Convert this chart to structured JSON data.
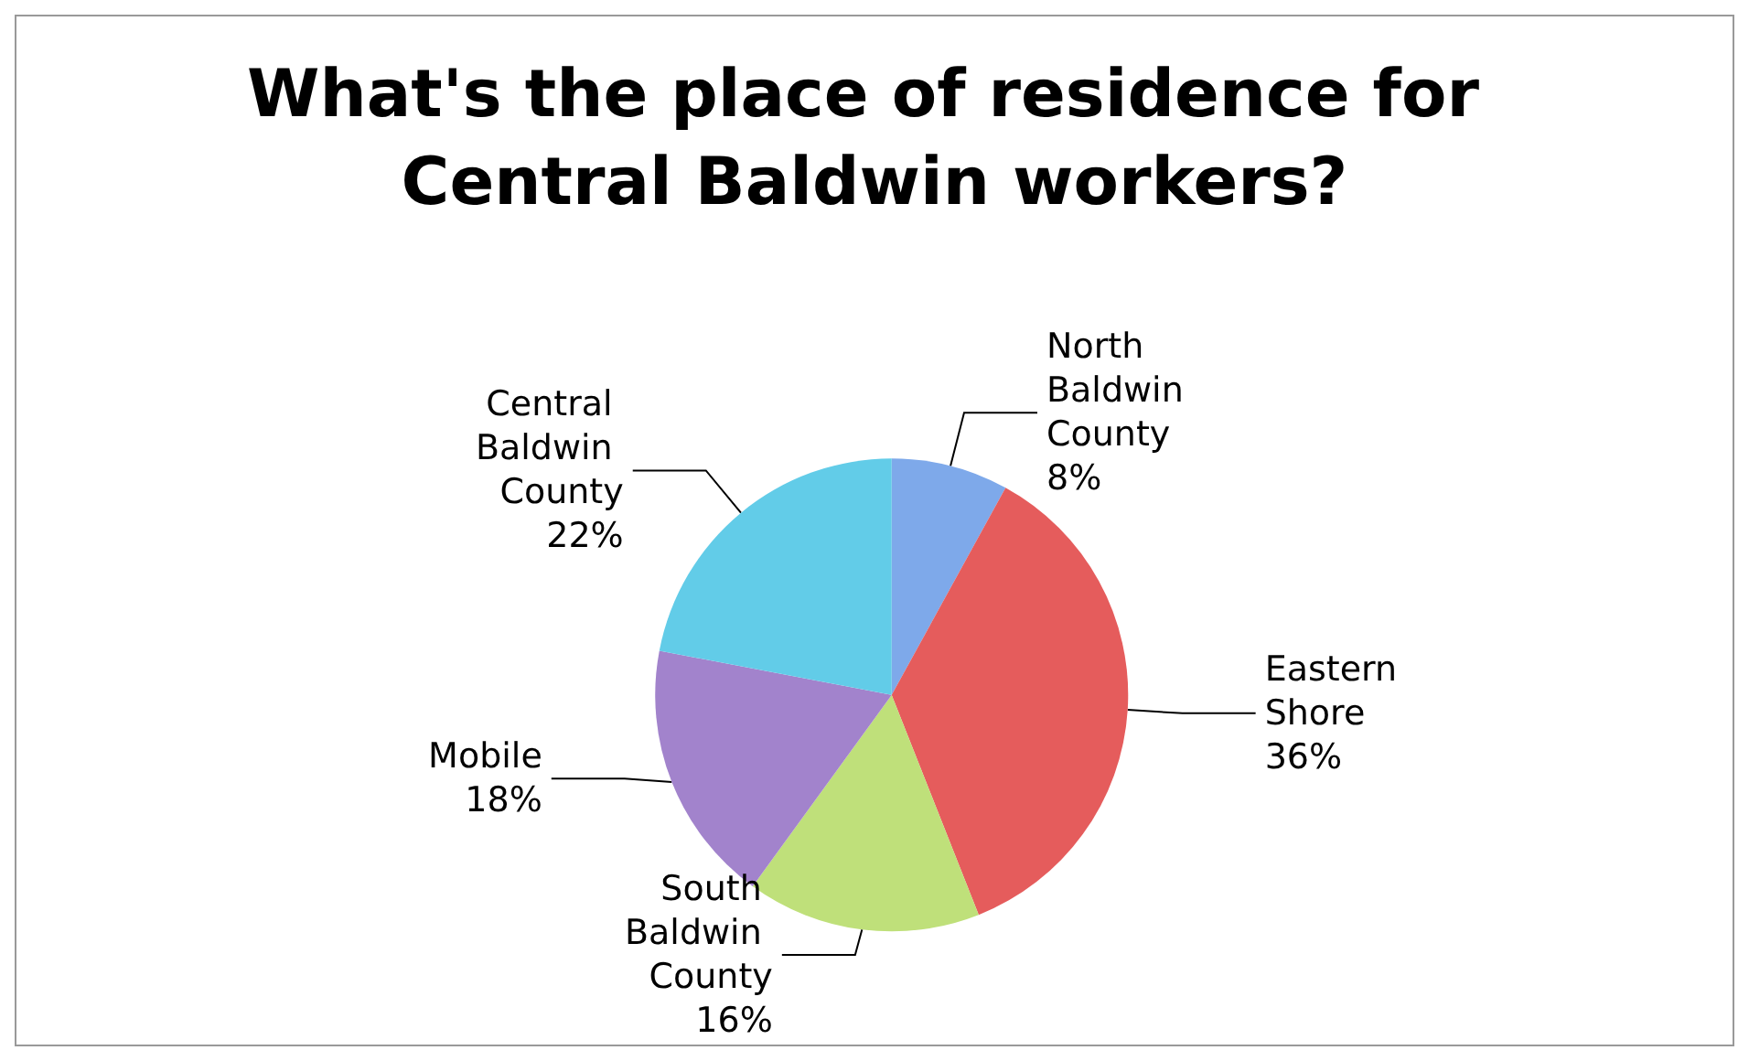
{
  "chart_data": {
    "type": "pie",
    "title": "What's the place of residence for Central Baldwin workers?",
    "categories": [
      "North Baldwin County",
      "Eastern Shore",
      "South Baldwin County",
      "Mobile",
      "Central Baldwin County"
    ],
    "values": [
      8,
      36,
      16,
      18,
      22
    ],
    "value_labels": [
      "8%",
      "36%",
      "16%",
      "18%",
      "22%"
    ],
    "colors": [
      "#7ea9ea",
      "#e55c5c",
      "#bfe07a",
      "#a283cc",
      "#62cce8"
    ],
    "legend": false
  }
}
